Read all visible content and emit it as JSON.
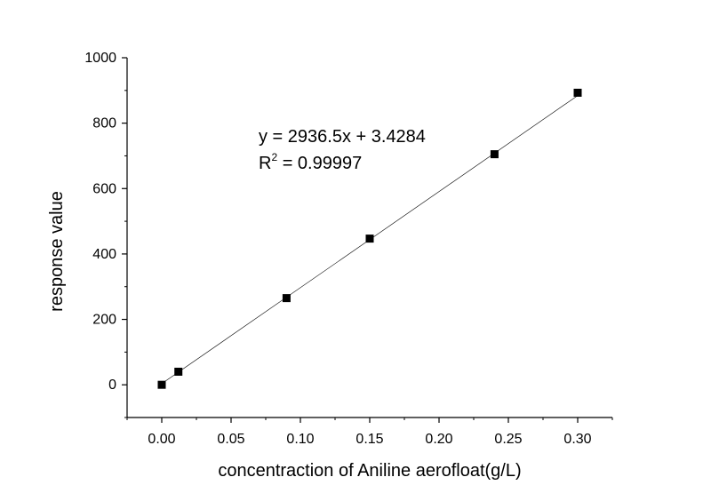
{
  "chart_data": {
    "type": "scatter",
    "title": "",
    "xlabel": "concentraction of Aniline aerofloat(g/L)",
    "ylabel": "response value",
    "xlim": [
      -0.025,
      0.325
    ],
    "ylim": [
      -100,
      1000
    ],
    "x_ticks": [
      "0.00",
      "0.05",
      "0.10",
      "0.15",
      "0.20",
      "0.25",
      "0.30"
    ],
    "y_ticks": [
      "0",
      "200",
      "400",
      "600",
      "800",
      "1000"
    ],
    "grid": false,
    "legend": "none",
    "series": [
      {
        "marker": "square",
        "color": "#000000",
        "points": [
          {
            "x": 0.0,
            "y": 0
          },
          {
            "x": 0.012,
            "y": 40
          },
          {
            "x": 0.09,
            "y": 265
          },
          {
            "x": 0.15,
            "y": 447
          },
          {
            "x": 0.24,
            "y": 705
          },
          {
            "x": 0.3,
            "y": 893
          }
        ]
      }
    ],
    "fit_line": {
      "slope": 2936.5,
      "intercept": 3.4284,
      "x_range": [
        0.0,
        0.3
      ],
      "color": "#000000"
    },
    "annotations": {
      "equation": "y = 2936.5x + 3.4284",
      "r2_prefix": "R",
      "r2_superscript": "2",
      "r2_value": " = 0.99997"
    }
  }
}
